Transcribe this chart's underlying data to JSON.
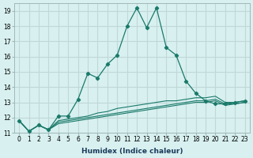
{
  "xlabel": "Humidex (Indice chaleur)",
  "ylabel": "",
  "bg_color": "#d8f0f0",
  "grid_color": "#c0d8d8",
  "line_color": "#1a7a6a",
  "x_main": [
    0,
    1,
    2,
    3,
    4,
    5,
    6,
    7,
    8,
    9,
    10,
    11,
    12,
    13,
    14,
    15,
    16,
    17,
    18,
    19,
    20,
    21,
    22,
    23
  ],
  "y_main": [
    11.8,
    11.1,
    11.5,
    11.2,
    12.1,
    12.1,
    13.2,
    14.9,
    14.6,
    15.5,
    16.1,
    18.0,
    19.2,
    17.9,
    19.2,
    16.6,
    16.1,
    14.4,
    13.6,
    13.1,
    12.9,
    12.9,
    13.0,
    13.1
  ],
  "y_line2": [
    11.8,
    11.1,
    11.5,
    11.2,
    11.8,
    11.9,
    12.0,
    12.1,
    12.3,
    12.4,
    12.6,
    12.7,
    12.8,
    12.9,
    13.0,
    13.1,
    13.1,
    13.2,
    13.3,
    13.3,
    13.4,
    13.0,
    13.0,
    13.1
  ],
  "y_line3": [
    11.8,
    11.1,
    11.5,
    11.2,
    11.7,
    11.8,
    11.9,
    12.0,
    12.1,
    12.2,
    12.3,
    12.4,
    12.5,
    12.6,
    12.7,
    12.8,
    12.9,
    13.0,
    13.1,
    13.1,
    13.2,
    12.9,
    12.9,
    13.0
  ],
  "y_line4": [
    11.8,
    11.1,
    11.5,
    11.2,
    11.6,
    11.7,
    11.8,
    11.9,
    12.0,
    12.1,
    12.2,
    12.3,
    12.4,
    12.5,
    12.6,
    12.7,
    12.8,
    12.9,
    13.0,
    13.0,
    13.1,
    12.8,
    12.9,
    13.0
  ],
  "xlim": [
    -0.5,
    23.5
  ],
  "ylim": [
    11.0,
    19.5
  ],
  "yticks": [
    11,
    12,
    13,
    14,
    15,
    16,
    17,
    18,
    19
  ],
  "xticks": [
    0,
    1,
    2,
    3,
    4,
    5,
    6,
    7,
    8,
    9,
    10,
    11,
    12,
    13,
    14,
    15,
    16,
    17,
    18,
    19,
    20,
    21,
    22,
    23
  ]
}
